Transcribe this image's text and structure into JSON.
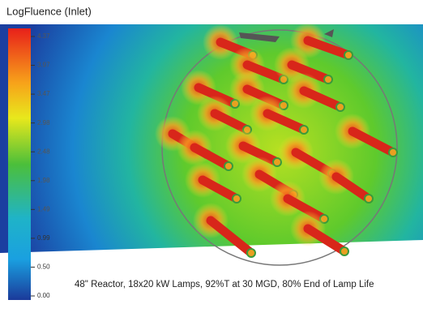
{
  "header": {
    "title": "LogFluence (Inlet)"
  },
  "colorbar": {
    "labels": [
      "4.37",
      "3.97",
      "3.47",
      "2.98",
      "2.48",
      "1.98",
      "1.49",
      "0.99",
      "0.50",
      "0.00"
    ]
  },
  "caption": "48\" Reactor, 18x20 kW Lamps, 92%T at 30 MGD, 80% End of Lamp Life"
}
